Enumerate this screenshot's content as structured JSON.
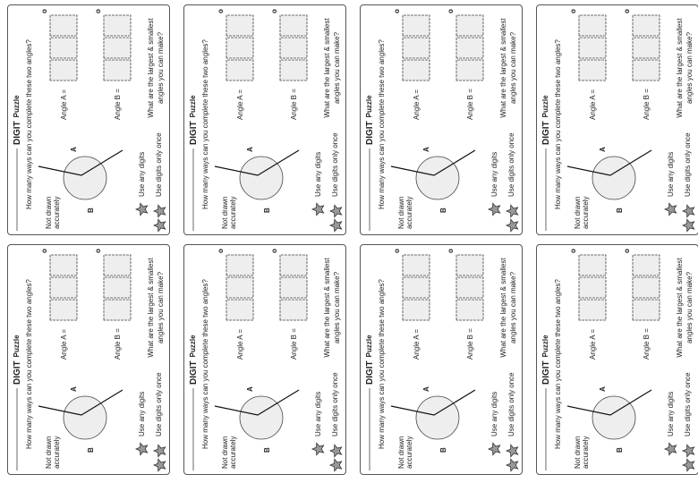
{
  "cards": [
    {
      "title_bold": "DIGIT",
      "title_rest": "Puzzle",
      "question": "How many ways can you complete these two angles?",
      "note": [
        "Not drawn",
        "accurately"
      ],
      "label_a": "A",
      "label_b": "B",
      "rules": [
        "Use any digits",
        "Use digits only once"
      ],
      "angle_a": "Angle A =",
      "angle_b": "Angle B =",
      "degree": "o",
      "challenge": [
        "What are the largest & smallest",
        "angles you can make?"
      ]
    },
    {
      "title_bold": "DIGIT",
      "title_rest": "Puzzle",
      "question": "How many ways can you complete these two angles?",
      "note": [
        "Not drawn",
        "accurately"
      ],
      "label_a": "A",
      "label_b": "B",
      "rules": [
        "Use any digits",
        "Use digits only once"
      ],
      "angle_a": "Angle A =",
      "angle_b": "Angle B =",
      "degree": "o",
      "challenge": [
        "What are the largest & smallest",
        "angles you can make?"
      ]
    },
    {
      "title_bold": "DIGIT",
      "title_rest": "Puzzle",
      "question": "How many ways can you complete these two angles?",
      "note": [
        "Not drawn",
        "accurately"
      ],
      "label_a": "A",
      "label_b": "B",
      "rules": [
        "Use any digits",
        "Use digits only once"
      ],
      "angle_a": "Angle A =",
      "angle_b": "Angle B =",
      "degree": "o",
      "challenge": [
        "What are the largest & smallest",
        "angles you can make?"
      ]
    },
    {
      "title_bold": "DIGIT",
      "title_rest": "Puzzle",
      "question": "How many ways can you complete these two angles?",
      "note": [
        "Not drawn",
        "accurately"
      ],
      "label_a": "A",
      "label_b": "B",
      "rules": [
        "Use any digits",
        "Use digits only once"
      ],
      "angle_a": "Angle A =",
      "angle_b": "Angle B =",
      "degree": "o",
      "challenge": [
        "What are the largest & smallest",
        "angles you can make?"
      ]
    },
    {
      "title_bold": "DIGIT",
      "title_rest": "Puzzle",
      "question": "How many ways can you complete these two angles?",
      "note": [
        "Not drawn",
        "accurately"
      ],
      "label_a": "A",
      "label_b": "B",
      "rules": [
        "Use any digits",
        "Use digits only once"
      ],
      "angle_a": "Angle A =",
      "angle_b": "Angle B =",
      "degree": "o",
      "challenge": [
        "What are the largest & smallest",
        "angles you can make?"
      ]
    },
    {
      "title_bold": "DIGIT",
      "title_rest": "Puzzle",
      "question": "How many ways can you complete these two angles?",
      "note": [
        "Not drawn",
        "accurately"
      ],
      "label_a": "A",
      "label_b": "B",
      "rules": [
        "Use any digits",
        "Use digits only once"
      ],
      "angle_a": "Angle A =",
      "angle_b": "Angle B =",
      "degree": "o",
      "challenge": [
        "What are the largest & smallest",
        "angles you can make?"
      ]
    },
    {
      "title_bold": "DIGIT",
      "title_rest": "Puzzle",
      "question": "How many ways can you complete these two angles?",
      "note": [
        "Not drawn",
        "accurately"
      ],
      "label_a": "A",
      "label_b": "B",
      "rules": [
        "Use any digits",
        "Use digits only once"
      ],
      "angle_a": "Angle A =",
      "angle_b": "Angle B =",
      "degree": "o",
      "challenge": [
        "What are the largest & smallest",
        "angles you can make?"
      ]
    },
    {
      "title_bold": "DIGIT",
      "title_rest": "Puzzle",
      "question": "How many ways can you complete these two angles?",
      "note": [
        "Not drawn",
        "accurately"
      ],
      "label_a": "A",
      "label_b": "B",
      "rules": [
        "Use any digits",
        "Use digits only once"
      ],
      "angle_a": "Angle A =",
      "angle_b": "Angle B =",
      "degree": "o",
      "challenge": [
        "What are the largest & smallest",
        "angles you can make?"
      ]
    }
  ]
}
